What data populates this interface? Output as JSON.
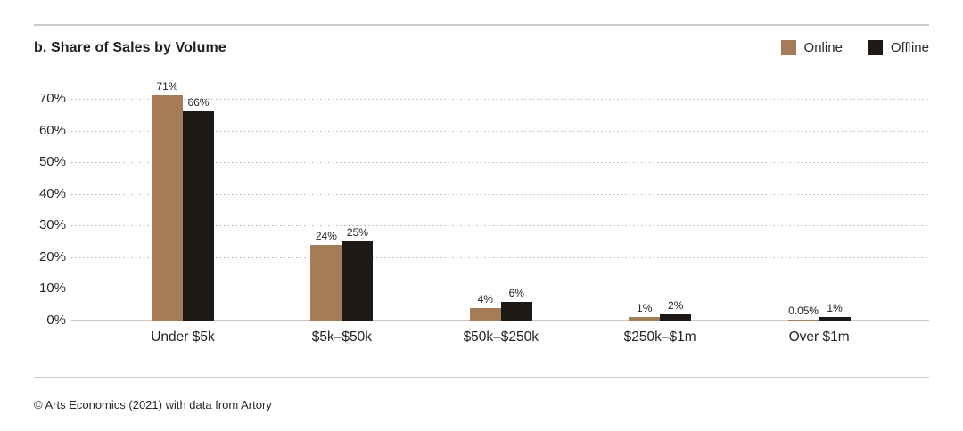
{
  "chart_data": {
    "type": "bar",
    "title": "b. Share of Sales by Volume",
    "categories": [
      "Under $5k",
      "$5k–$50k",
      "$50k–$250k",
      "$250k–$1m",
      "Over $1m"
    ],
    "series": [
      {
        "name": "Online",
        "color": "#A67C58",
        "values": [
          71,
          24,
          4,
          1,
          0.05
        ],
        "labels": [
          "71%",
          "24%",
          "4%",
          "1%",
          "0.05%"
        ]
      },
      {
        "name": "Offline",
        "color": "#1C1917",
        "values": [
          66,
          25,
          6,
          2,
          1
        ],
        "labels": [
          "66%",
          "25%",
          "6%",
          "2%",
          "1%"
        ]
      }
    ],
    "ylim": [
      0,
      70
    ],
    "yticks": [
      "70%",
      "60%",
      "50%",
      "40%",
      "30%",
      "20%",
      "10%",
      "0%"
    ],
    "grid": "horizontal-dotted",
    "legend_position": "top-right",
    "colors": {
      "online": "#A67C58",
      "offline": "#1C1917",
      "gridline": "#B3B3B3",
      "divider": "#CBCBCB",
      "text": "#262122"
    }
  },
  "footer": {
    "source": "© Arts Economics (2021) with data from Artory"
  }
}
